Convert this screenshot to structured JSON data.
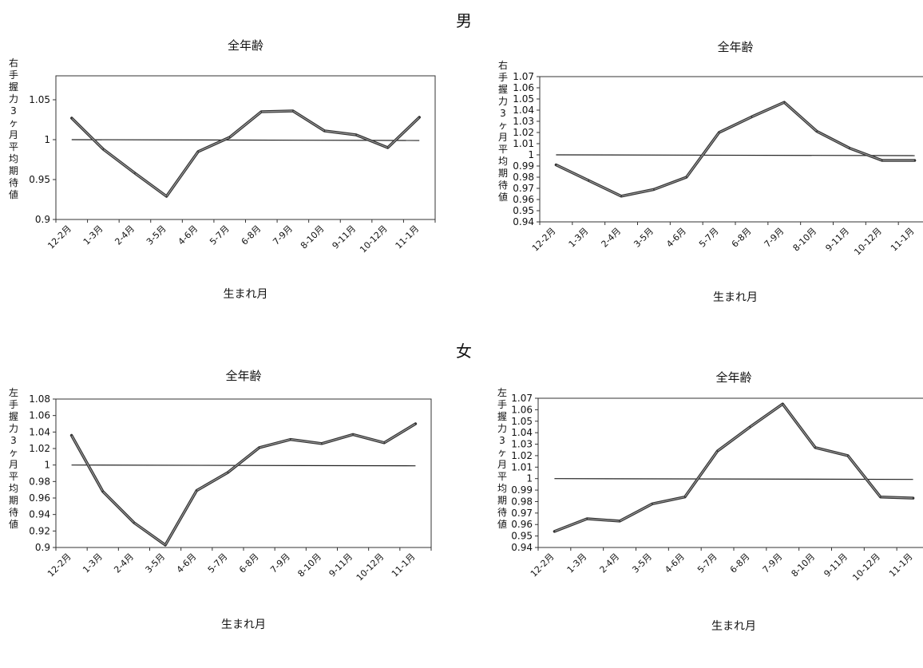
{
  "sections": {
    "male": "男",
    "female": "女"
  },
  "chart_data": [
    {
      "type": "line",
      "title": "全年齢",
      "ylabel": "右手握力3ヶ月平均期待値",
      "xlabel": "生まれ月",
      "categories": [
        "12-2月",
        "1-3月",
        "2-4月",
        "3-5月",
        "4-6月",
        "5-7月",
        "6-8月",
        "7-9月",
        "8-10月",
        "9-11月",
        "10-12月",
        "11-1月"
      ],
      "values": [
        1.027,
        0.988,
        0.958,
        0.929,
        0.985,
        1.003,
        1.035,
        1.036,
        1.011,
        1.006,
        0.99,
        1.028
      ],
      "reference": 1.0,
      "ylim": [
        0.9,
        1.08
      ],
      "yticks": [
        "0.9",
        "0.95",
        "1",
        "1.05"
      ],
      "grid": false,
      "legend": "none"
    },
    {
      "type": "line",
      "title": "全年齢",
      "ylabel": "右手握力3ヶ月平均期待値",
      "xlabel": "生まれ月",
      "categories": [
        "12-2月",
        "1-3月",
        "2-4月",
        "3-5月",
        "4-6月",
        "5-7月",
        "6-8月",
        "7-9月",
        "8-10月",
        "9-11月",
        "10-12月",
        "11-1月"
      ],
      "values": [
        0.991,
        0.977,
        0.963,
        0.969,
        0.98,
        1.02,
        1.034,
        1.047,
        1.021,
        1.006,
        0.995,
        0.995
      ],
      "reference": 1.0,
      "ylim": [
        0.94,
        1.07
      ],
      "yticks": [
        "0.94",
        "0.95",
        "0.96",
        "0.97",
        "0.98",
        "0.99",
        "1",
        "1.01",
        "1.02",
        "1.03",
        "1.04",
        "1.05",
        "1.06",
        "1.07"
      ],
      "grid": false,
      "legend": "none"
    },
    {
      "type": "line",
      "title": "全年齢",
      "ylabel": "左手握力3ヶ月平均期待値",
      "xlabel": "生まれ月",
      "categories": [
        "12-2月",
        "1-3月",
        "2-4月",
        "3-5月",
        "4-6月",
        "5-7月",
        "6-8月",
        "7-9月",
        "8-10月",
        "9-11月",
        "10-12月",
        "11-1月"
      ],
      "values": [
        1.036,
        0.968,
        0.93,
        0.903,
        0.969,
        0.991,
        1.021,
        1.031,
        1.026,
        1.037,
        1.027,
        1.05
      ],
      "reference": 1.0,
      "ylim": [
        0.9,
        1.08
      ],
      "yticks": [
        "0.9",
        "0.92",
        "0.94",
        "0.96",
        "0.98",
        "1",
        "1.02",
        "1.04",
        "1.06",
        "1.08"
      ],
      "grid": false,
      "legend": "none"
    },
    {
      "type": "line",
      "title": "全年齢",
      "ylabel": "左手握力3ヶ月平均期待値",
      "xlabel": "生まれ月",
      "categories": [
        "12-2月",
        "1-3月",
        "2-4月",
        "3-5月",
        "4-6月",
        "5-7月",
        "6-8月",
        "7-9月",
        "8-10月",
        "9-11月",
        "10-12月",
        "11-1月"
      ],
      "values": [
        0.954,
        0.965,
        0.963,
        0.978,
        0.984,
        1.024,
        1.045,
        1.065,
        1.027,
        1.02,
        0.984,
        0.983
      ],
      "reference": 1.0,
      "ylim": [
        0.94,
        1.07
      ],
      "yticks": [
        "0.94",
        "0.95",
        "0.96",
        "0.97",
        "0.98",
        "0.99",
        "1",
        "1.01",
        "1.02",
        "1.03",
        "1.04",
        "1.05",
        "1.06",
        "1.07"
      ],
      "grid": false,
      "legend": "none"
    }
  ]
}
